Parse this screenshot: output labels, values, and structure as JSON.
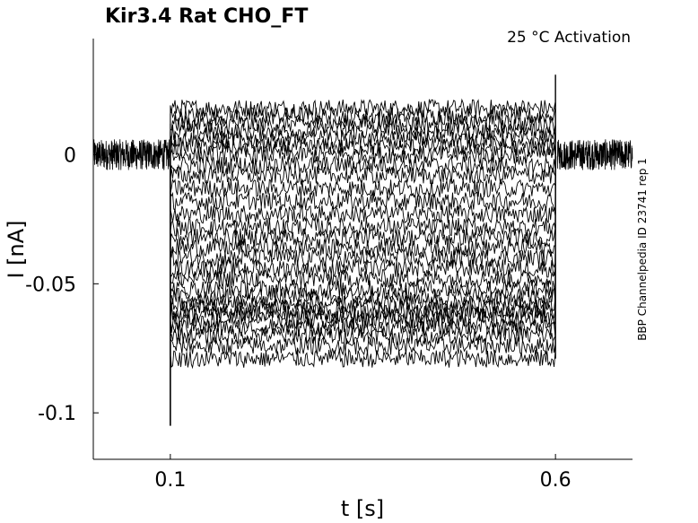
{
  "chart_data": {
    "type": "line",
    "title": "Kir3.4  Rat  CHO_FT",
    "subtitle": "25 °C  Activation",
    "side_note": "BBP Channelpedia ID 23741 rep 1",
    "xlabel": "t [s]",
    "ylabel": "I [nA]",
    "xlim": [
      0.0,
      0.7
    ],
    "ylim": [
      -0.118,
      0.045
    ],
    "xticks": [
      {
        "value": 0.1,
        "label": "0.1"
      },
      {
        "value": 0.6,
        "label": "0.6"
      }
    ],
    "yticks": [
      {
        "value": 0,
        "label": "0"
      },
      {
        "value": -0.05,
        "label": "-0.05"
      },
      {
        "value": -0.1,
        "label": "-0.1"
      }
    ],
    "step_on": 0.1,
    "step_off": 0.6,
    "baseline": 0.0,
    "baseline_noise": 0.006,
    "step_noise": 0.0035,
    "step_levels": [
      0.018,
      0.015,
      0.012,
      0.009,
      0.006,
      0.003,
      0.0,
      -0.004,
      -0.008,
      -0.013,
      -0.018,
      -0.023,
      -0.028,
      -0.032,
      -0.036,
      -0.04,
      -0.044,
      -0.048,
      -0.052,
      -0.055,
      -0.058,
      -0.06,
      -0.062,
      -0.064,
      -0.067,
      -0.07,
      -0.074,
      -0.079
    ],
    "onset_transient_min": -0.105,
    "offset_transient_max": 0.031,
    "grid": false,
    "line_color": "#000000"
  }
}
